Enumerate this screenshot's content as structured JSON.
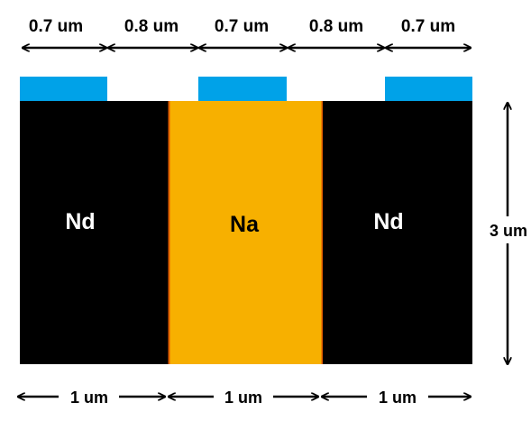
{
  "colors": {
    "contact": "#00a2e8",
    "nd_region": "#000000",
    "na_region": "#f7b000",
    "na_edge": "#e05a00",
    "arrow": "#000000",
    "label_on_dark": "#ffffff",
    "label_on_light": "#000000"
  },
  "top_dimensions": [
    "0.7 um",
    "0.8 um",
    "0.7 um",
    "0.8 um",
    "0.7 um"
  ],
  "regions": {
    "left": "Nd",
    "middle": "Na",
    "right": "Nd"
  },
  "height_dimension": "3 um",
  "bottom_dimensions": [
    "1 um",
    "1 um",
    "1 um"
  ]
}
